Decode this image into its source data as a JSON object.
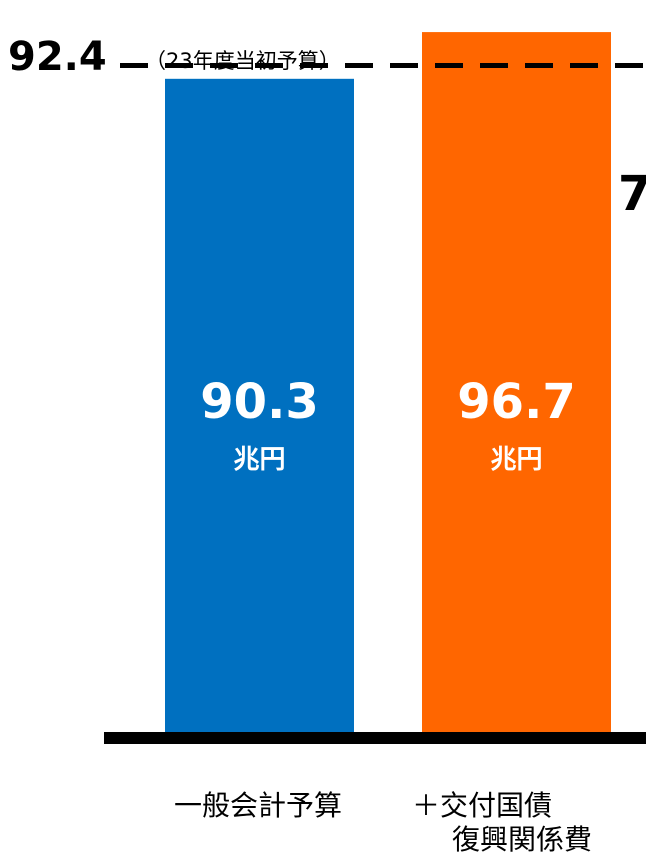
{
  "chart_data": {
    "type": "bar",
    "categories": [
      [
        "一般会計予算"
      ],
      [
        "＋交付国債",
        "復興関係費"
      ]
    ],
    "values": [
      90.3,
      96.7
    ],
    "value_labels": [
      "90.3",
      "96.7"
    ],
    "unit_label": "兆円",
    "reference_line": {
      "value": 92.4,
      "value_label": "92.4",
      "note": "（23年度当初予算）",
      "style": "dashed"
    },
    "partial_value_label": "7",
    "ylim": [
      0,
      100
    ],
    "grid": false,
    "legend": "none"
  },
  "colors": {
    "bar_1": "#0070c0",
    "bar_2": "#ff6600",
    "baseline": "#000000",
    "reference_line": "#000000"
  }
}
